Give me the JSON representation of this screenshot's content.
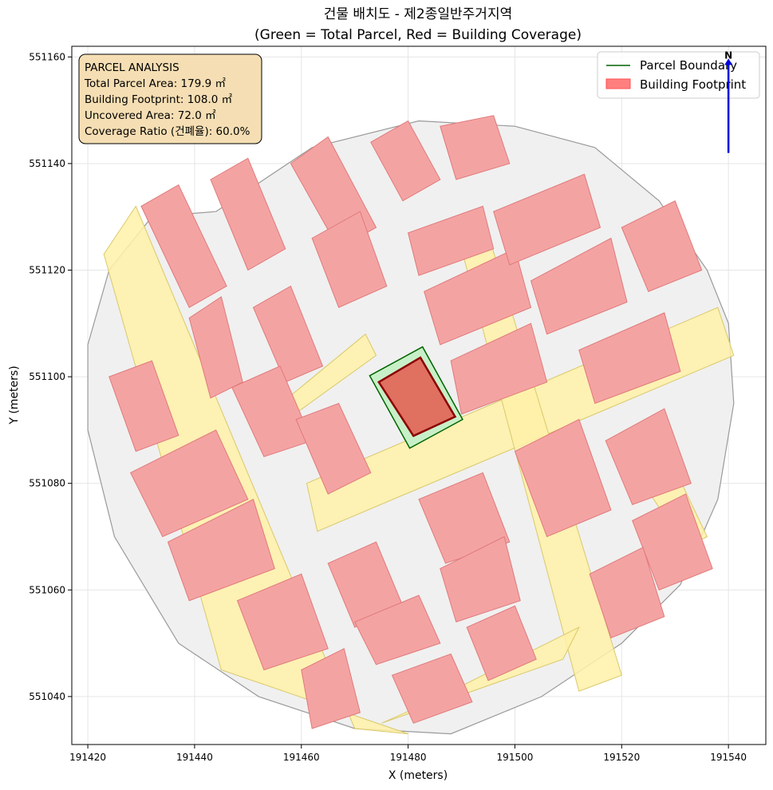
{
  "chart_data": {
    "type": "map",
    "title": "건물 배치도 - 제2종일반주거지역",
    "subtitle": "(Green = Total Parcel, Red = Building Coverage)",
    "xlabel": "X (meters)",
    "ylabel": "Y (meters)",
    "xlim": [
      191417,
      191547
    ],
    "ylim": [
      551031,
      551162
    ],
    "xticks": [
      191420,
      191440,
      191460,
      191480,
      191500,
      191520,
      191540
    ],
    "yticks": [
      551040,
      551060,
      551080,
      551100,
      551120,
      551140,
      551160
    ],
    "grid": true,
    "legend": {
      "placement": "top-right",
      "entries": [
        {
          "label": "Parcel Boundary",
          "color": "#006400",
          "style": "line"
        },
        {
          "label": "Building Footprint",
          "color": "#ff7f7f",
          "style": "patch"
        }
      ]
    },
    "info_box": {
      "lines": [
        "PARCEL ANALYSIS",
        "Total Parcel Area: 179.9 ㎡",
        "Building Footprint: 108.0 ㎡",
        "Uncovered Area: 72.0 ㎡",
        "Coverage Ratio (건폐율): 60.0%"
      ],
      "fill": "#f5deb3"
    },
    "north_arrow": {
      "label": "N",
      "x": 191540,
      "y_from": 551142,
      "y_to": 551160,
      "color": "#0000dd"
    },
    "target_parcel": {
      "area_m2": 179.9,
      "polygon": [
        [
          191472.8,
          551100.2
        ],
        [
          191482.7,
          551105.6
        ],
        [
          191490.2,
          551092.0
        ],
        [
          191480.3,
          551086.6
        ]
      ]
    },
    "target_building": {
      "area_m2": 108.0,
      "coverage_ratio_pct": 60.0,
      "polygon": [
        [
          191474.5,
          551099.0
        ],
        [
          191482.3,
          551103.6
        ],
        [
          191488.8,
          551092.5
        ],
        [
          191481.0,
          551088.9
        ]
      ]
    },
    "study_area": [
      [
        191444,
        551131
      ],
      [
        191462,
        551143
      ],
      [
        191482,
        551148
      ],
      [
        191500,
        551147
      ],
      [
        191515,
        551143
      ],
      [
        191527,
        551133
      ],
      [
        191536,
        551120
      ],
      [
        191540,
        551110
      ],
      [
        191541,
        551095
      ],
      [
        191538,
        551077
      ],
      [
        191531,
        551061
      ],
      [
        191520,
        551050
      ],
      [
        191505,
        551040
      ],
      [
        191488,
        551033
      ],
      [
        191470,
        551034
      ],
      [
        191452,
        551040
      ],
      [
        191437,
        551050
      ],
      [
        191425,
        551070
      ],
      [
        191420,
        551090
      ],
      [
        191420,
        551106
      ],
      [
        191424,
        551120
      ],
      [
        191432,
        551130
      ]
    ],
    "roads": [
      [
        [
          191423,
          551123
        ],
        [
          191429,
          551132
        ],
        [
          191470,
          551034
        ],
        [
          191480,
          551033
        ],
        [
          191445,
          551045
        ]
      ],
      [
        [
          191455,
          551094
        ],
        [
          191472,
          551108
        ],
        [
          191474,
          551104
        ],
        [
          191456,
          551091
        ]
      ],
      [
        [
          191461,
          551080
        ],
        [
          191538,
          551113
        ],
        [
          191541,
          551104
        ],
        [
          191463,
          551071
        ]
      ],
      [
        [
          191490,
          551124
        ],
        [
          191494,
          551130
        ],
        [
          191520,
          551044
        ],
        [
          191512,
          551041
        ]
      ],
      [
        [
          191475,
          551035
        ],
        [
          191484,
          551039
        ],
        [
          191512,
          551053
        ],
        [
          191509,
          551047
        ]
      ],
      [
        [
          191520,
          551086
        ],
        [
          191526,
          551091
        ],
        [
          191536,
          551070
        ],
        [
          191532,
          551068
        ]
      ]
    ],
    "buildings": [
      [
        [
          191430,
          551132
        ],
        [
          191437,
          551136
        ],
        [
          191446,
          551117
        ],
        [
          191439,
          551113
        ]
      ],
      [
        [
          191443,
          551137
        ],
        [
          191450,
          551141
        ],
        [
          191457,
          551124
        ],
        [
          191450,
          551120
        ]
      ],
      [
        [
          191458,
          551140
        ],
        [
          191465,
          551145
        ],
        [
          191474,
          551128
        ],
        [
          191467,
          551124
        ]
      ],
      [
        [
          191473,
          551144
        ],
        [
          191480,
          551148
        ],
        [
          191486,
          551137
        ],
        [
          191479,
          551133
        ]
      ],
      [
        [
          191486,
          551147
        ],
        [
          191496,
          551149
        ],
        [
          191499,
          551140
        ],
        [
          191489,
          551137
        ]
      ],
      [
        [
          191439,
          551111
        ],
        [
          191445,
          551115
        ],
        [
          191449,
          551099
        ],
        [
          191443,
          551096
        ]
      ],
      [
        [
          191451,
          551113
        ],
        [
          191458,
          551117
        ],
        [
          191464,
          551102
        ],
        [
          191457,
          551099
        ]
      ],
      [
        [
          191462,
          551126
        ],
        [
          191471,
          551131
        ],
        [
          191476,
          551117
        ],
        [
          191467,
          551113
        ]
      ],
      [
        [
          191480,
          551127
        ],
        [
          191494,
          551132
        ],
        [
          191496,
          551124
        ],
        [
          191482,
          551119
        ]
      ],
      [
        [
          191483,
          551116
        ],
        [
          191500,
          551124
        ],
        [
          191503,
          551113
        ],
        [
          191486,
          551106
        ]
      ],
      [
        [
          191488,
          551103
        ],
        [
          191503,
          551110
        ],
        [
          191506,
          551099
        ],
        [
          191490,
          551093
        ]
      ],
      [
        [
          191496,
          551131
        ],
        [
          191513,
          551138
        ],
        [
          191516,
          551128
        ],
        [
          191499,
          551121
        ]
      ],
      [
        [
          191503,
          551118
        ],
        [
          191518,
          551126
        ],
        [
          191521,
          551114
        ],
        [
          191506,
          551108
        ]
      ],
      [
        [
          191512,
          551105
        ],
        [
          191528,
          551112
        ],
        [
          191531,
          551101
        ],
        [
          191515,
          551095
        ]
      ],
      [
        [
          191520,
          551128
        ],
        [
          191530,
          551133
        ],
        [
          191535,
          551120
        ],
        [
          191525,
          551116
        ]
      ],
      [
        [
          191424,
          551100
        ],
        [
          191432,
          551103
        ],
        [
          191437,
          551089
        ],
        [
          191429,
          551086
        ]
      ],
      [
        [
          191428,
          551082
        ],
        [
          191444,
          551090
        ],
        [
          191450,
          551077
        ],
        [
          191434,
          551070
        ]
      ],
      [
        [
          191435,
          551069
        ],
        [
          191451,
          551077
        ],
        [
          191455,
          551064
        ],
        [
          191439,
          551058
        ]
      ],
      [
        [
          191447,
          551098
        ],
        [
          191456,
          551102
        ],
        [
          191462,
          551088
        ],
        [
          191453,
          551085
        ]
      ],
      [
        [
          191459,
          551092
        ],
        [
          191467,
          551095
        ],
        [
          191473,
          551082
        ],
        [
          191465,
          551078
        ]
      ],
      [
        [
          191500,
          551086
        ],
        [
          191512,
          551092
        ],
        [
          191518,
          551075
        ],
        [
          191506,
          551070
        ]
      ],
      [
        [
          191517,
          551088
        ],
        [
          191528,
          551094
        ],
        [
          191533,
          551080
        ],
        [
          191522,
          551076
        ]
      ],
      [
        [
          191522,
          551073
        ],
        [
          191532,
          551078
        ],
        [
          191537,
          551064
        ],
        [
          191527,
          551060
        ]
      ],
      [
        [
          191482,
          551077
        ],
        [
          191494,
          551082
        ],
        [
          191499,
          551069
        ],
        [
          191487,
          551065
        ]
      ],
      [
        [
          191486,
          551064
        ],
        [
          191498,
          551070
        ],
        [
          191501,
          551058
        ],
        [
          191489,
          551054
        ]
      ],
      [
        [
          191491,
          551053
        ],
        [
          191500,
          551057
        ],
        [
          191504,
          551047
        ],
        [
          191495,
          551043
        ]
      ],
      [
        [
          191465,
          551065
        ],
        [
          191474,
          551069
        ],
        [
          191479,
          551057
        ],
        [
          191470,
          551053
        ]
      ],
      [
        [
          191470,
          551054
        ],
        [
          191482,
          551059
        ],
        [
          191486,
          551050
        ],
        [
          191474,
          551046
        ]
      ],
      [
        [
          191477,
          551044
        ],
        [
          191488,
          551048
        ],
        [
          191492,
          551039
        ],
        [
          191481,
          551035
        ]
      ],
      [
        [
          191448,
          551058
        ],
        [
          191460,
          551063
        ],
        [
          191465,
          551049
        ],
        [
          191453,
          551045
        ]
      ],
      [
        [
          191460,
          551045
        ],
        [
          191468,
          551049
        ],
        [
          191471,
          551037
        ],
        [
          191462,
          551034
        ]
      ],
      [
        [
          191514,
          551063
        ],
        [
          191524,
          551068
        ],
        [
          191528,
          551055
        ],
        [
          191518,
          551051
        ]
      ]
    ]
  }
}
